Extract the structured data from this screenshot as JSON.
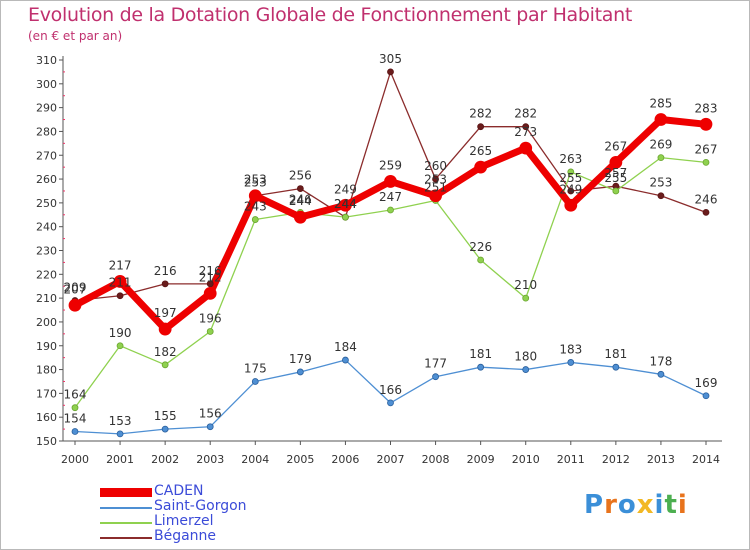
{
  "chart_data": {
    "type": "line",
    "title": "Evolution de la Dotation Globale de Fonctionnement par Habitant",
    "subtitle": "(en € et par an)",
    "x": [
      "2000",
      "2001",
      "2002",
      "2003",
      "2004",
      "2005",
      "2006",
      "2007",
      "2008",
      "2009",
      "2010",
      "2011",
      "2012",
      "2013",
      "2014"
    ],
    "ylim": [
      150,
      310
    ],
    "yticks": [
      150,
      160,
      170,
      180,
      190,
      200,
      210,
      220,
      230,
      240,
      250,
      260,
      270,
      280,
      290,
      300,
      310
    ],
    "series": [
      {
        "name": "CADEN",
        "color": "#ee0000",
        "values": [
          207,
          217,
          197,
          212,
          253,
          244,
          249,
          259,
          253,
          265,
          273,
          249,
          267,
          285,
          283
        ],
        "labels": [
          "207",
          "217",
          "197",
          "212",
          "253",
          "244",
          "249",
          "259",
          "253",
          "265",
          "273",
          "249",
          "267",
          "285",
          "283"
        ]
      },
      {
        "name": "Saint-Gorgon",
        "color": "#4e8fd3",
        "values": [
          154,
          153,
          155,
          156,
          175,
          179,
          184,
          166,
          177,
          181,
          180,
          183,
          181,
          178,
          169
        ],
        "labels": [
          "154",
          "153",
          "155",
          "156",
          "175",
          "179",
          "184",
          "166",
          "177",
          "181",
          "180",
          "183",
          "181",
          "178",
          "169"
        ]
      },
      {
        "name": "Limerzel",
        "color": "#8fd14f",
        "values": [
          164,
          190,
          182,
          196,
          243,
          246,
          244,
          247,
          251,
          226,
          210,
          263,
          255,
          269,
          267
        ],
        "labels": [
          "164",
          "190",
          "182",
          "196",
          "243",
          "246",
          "244",
          "247",
          "251",
          "226",
          "210",
          "263",
          "255",
          "269",
          "267"
        ]
      },
      {
        "name": "Béganne",
        "color": "#8b2c2c",
        "values": [
          209,
          211,
          216,
          216,
          253,
          256,
          244,
          305,
          260,
          282,
          282,
          255,
          257,
          253,
          246
        ],
        "labels": [
          "209",
          "211",
          "216",
          "216",
          "253",
          "256",
          "244",
          "305",
          "260",
          "282",
          "282",
          "255",
          "257",
          "253",
          "246"
        ]
      }
    ],
    "legend": "bottom-left",
    "grid": false
  },
  "branding": {
    "logo_text": "Proxiti"
  },
  "colors": {
    "title": "#c0306e",
    "axis": "#555555",
    "tick_marks": "#ee3366",
    "logo": [
      "#3b8fd8",
      "#e8731c",
      "#3b8fd8",
      "#f2b824",
      "#3b8fd8",
      "#4caf50",
      "#e8731c"
    ]
  }
}
